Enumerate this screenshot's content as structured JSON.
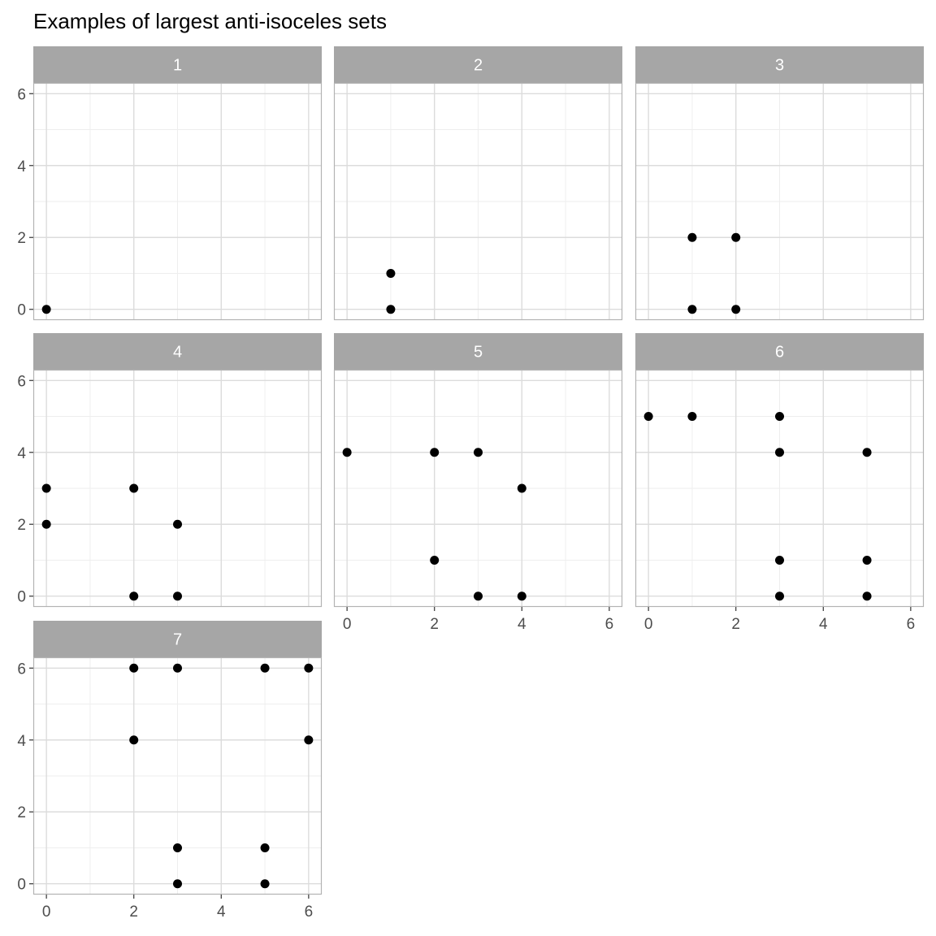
{
  "chart_data": {
    "type": "scatter",
    "title": "Examples of largest anti-isoceles sets",
    "xlabel": "",
    "ylabel": "",
    "xlim": [
      -0.3,
      6.3
    ],
    "ylim": [
      -0.3,
      6.3
    ],
    "x_ticks": [
      0,
      2,
      4,
      6
    ],
    "y_ticks": [
      0,
      2,
      4,
      6
    ],
    "grid": true,
    "legend": "none",
    "facet_layout": {
      "rows": 3,
      "cols": 3
    },
    "colors": {
      "point": "#000000",
      "strip_background": "#a6a6a6",
      "strip_text": "#ffffff",
      "panel_border": "#b3b3b3",
      "grid_major": "#dcdcdc",
      "grid_minor": "#eeeeee",
      "tick_label": "#4d4d4d"
    },
    "panels": [
      {
        "label": "1",
        "points": [
          [
            0,
            0
          ]
        ]
      },
      {
        "label": "2",
        "points": [
          [
            1,
            0
          ],
          [
            1,
            1
          ]
        ]
      },
      {
        "label": "3",
        "points": [
          [
            1,
            0
          ],
          [
            2,
            0
          ],
          [
            1,
            2
          ],
          [
            2,
            2
          ]
        ]
      },
      {
        "label": "4",
        "points": [
          [
            0,
            2
          ],
          [
            0,
            3
          ],
          [
            2,
            0
          ],
          [
            2,
            3
          ],
          [
            3,
            0
          ],
          [
            3,
            2
          ]
        ]
      },
      {
        "label": "5",
        "points": [
          [
            0,
            4
          ],
          [
            2,
            1
          ],
          [
            2,
            4
          ],
          [
            3,
            0
          ],
          [
            3,
            4
          ],
          [
            4,
            0
          ],
          [
            4,
            3
          ]
        ]
      },
      {
        "label": "6",
        "points": [
          [
            0,
            5
          ],
          [
            1,
            5
          ],
          [
            3,
            0
          ],
          [
            3,
            1
          ],
          [
            3,
            4
          ],
          [
            3,
            5
          ],
          [
            5,
            0
          ],
          [
            5,
            1
          ],
          [
            5,
            4
          ]
        ]
      },
      {
        "label": "7",
        "points": [
          [
            2,
            4
          ],
          [
            2,
            6
          ],
          [
            3,
            0
          ],
          [
            3,
            1
          ],
          [
            3,
            6
          ],
          [
            5,
            0
          ],
          [
            5,
            1
          ],
          [
            5,
            6
          ],
          [
            6,
            4
          ],
          [
            6,
            6
          ]
        ]
      }
    ]
  }
}
